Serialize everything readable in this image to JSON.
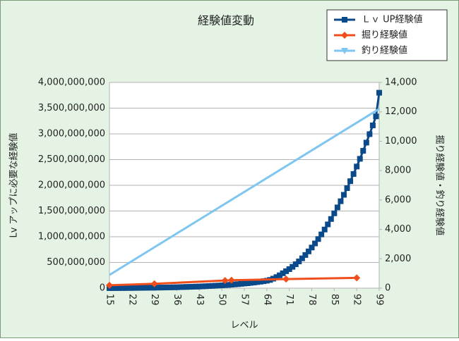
{
  "chart_data": {
    "type": "line",
    "title": "経験値変動",
    "xlabel": "レベル",
    "ylabel": "Lv アップに必要な経験値",
    "y2label": "掘り経験値・釣り経験値",
    "xlim": [
      15,
      99
    ],
    "xticks": [
      15,
      22,
      29,
      36,
      43,
      50,
      57,
      64,
      71,
      78,
      85,
      92,
      99
    ],
    "ylim": [
      0,
      4000000000
    ],
    "yticks": [
      0,
      {
        "value": 500000000,
        "label": "500,000,000"
      },
      {
        "value": 1000000000,
        "label": "1,000,000,000"
      },
      {
        "value": 1500000000,
        "label": "1,500,000,000"
      },
      {
        "value": 2000000000,
        "label": "2,000,000,000"
      },
      {
        "value": 2500000000,
        "label": "2,500,000,000"
      },
      {
        "value": 3000000000,
        "label": "3,000,000,000"
      },
      {
        "value": 3500000000,
        "label": "3,500,000,000"
      },
      {
        "value": 4000000000,
        "label": "4,000,000,000"
      }
    ],
    "y2lim": [
      0,
      14000
    ],
    "y2ticks": [
      0,
      {
        "value": 2000,
        "label": "2,000"
      },
      {
        "value": 4000,
        "label": "4,000"
      },
      {
        "value": 6000,
        "label": "6,000"
      },
      {
        "value": 8000,
        "label": "8,000"
      },
      {
        "value": 10000,
        "label": "10,000"
      },
      {
        "value": 12000,
        "label": "12,000"
      },
      {
        "value": 14000,
        "label": "14,000"
      }
    ],
    "grid": true,
    "legend": "top-right",
    "series": [
      {
        "name": "Ｌｖ UP経験値",
        "color": "#0a4a8a",
        "marker": "square",
        "show_markers": true,
        "x": [
          15,
          16,
          17,
          18,
          19,
          20,
          21,
          22,
          23,
          24,
          25,
          26,
          27,
          28,
          29,
          30,
          31,
          32,
          33,
          34,
          35,
          36,
          37,
          38,
          39,
          40,
          41,
          42,
          43,
          44,
          45,
          46,
          47,
          48,
          49,
          50,
          51,
          52,
          53,
          54,
          55,
          56,
          57,
          58,
          59,
          60,
          61,
          62,
          63,
          64,
          65,
          66,
          67,
          68,
          69,
          70,
          71,
          72,
          73,
          74,
          75,
          76,
          77,
          78,
          79,
          80,
          81,
          82,
          83,
          84,
          85,
          86,
          87,
          88,
          89,
          90,
          91,
          92,
          93,
          94,
          95,
          96,
          97,
          98,
          99
        ],
        "values": [
          1000000,
          1000000,
          2000000,
          2000000,
          3000000,
          3000000,
          4000000,
          4000000,
          5000000,
          6000000,
          6000000,
          7000000,
          8000000,
          9000000,
          10000000,
          11000000,
          12000000,
          13000000,
          14000000,
          15000000,
          17000000,
          18000000,
          20000000,
          22000000,
          24000000,
          26000000,
          28000000,
          30000000,
          32000000,
          35000000,
          38000000,
          41000000,
          44000000,
          47000000,
          51000000,
          55000000,
          59000000,
          63000000,
          68000000,
          73000000,
          78000000,
          84000000,
          90000000,
          96000000,
          103000000,
          110000000,
          118000000,
          126000000,
          135000000,
          145000000,
          160000000,
          185000000,
          215000000,
          250000000,
          290000000,
          330000000,
          370000000,
          415000000,
          465000000,
          520000000,
          580000000,
          645000000,
          715000000,
          790000000,
          870000000,
          955000000,
          1045000000,
          1140000000,
          1240000000,
          1345000000,
          1455000000,
          1570000000,
          1690000000,
          1815000000,
          1945000000,
          2080000000,
          2220000000,
          2365000000,
          2515000000,
          2670000000,
          2830000000,
          2995000000,
          3165000000,
          3340000000,
          3800000000
        ]
      },
      {
        "name": "掘り経験値",
        "color": "#f04e1c",
        "marker": "diamond",
        "show_markers": true,
        "axis": "y2",
        "x": [
          15,
          29,
          51,
          53,
          70,
          92
        ],
        "values": [
          200,
          300,
          520,
          540,
          620,
          700
        ]
      },
      {
        "name": "釣り経験値",
        "color": "#7ec6f0",
        "marker": "triangle",
        "show_markers": false,
        "axis": "y2",
        "x": [
          15,
          99
        ],
        "values": [
          900,
          12200
        ]
      }
    ]
  }
}
